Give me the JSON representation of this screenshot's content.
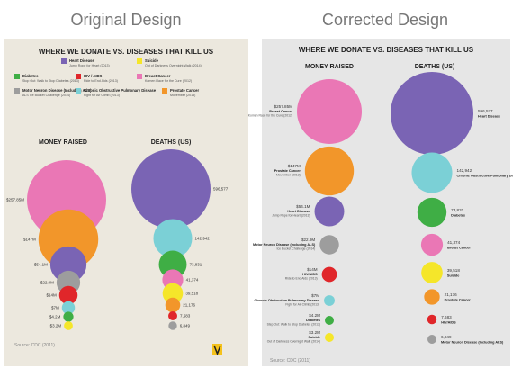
{
  "headers": {
    "left": "Original Design",
    "right": "Corrected Design"
  },
  "colors": {
    "purple": "#7a64b4",
    "yellow": "#f5e62a",
    "green": "#3fae45",
    "red": "#e0262a",
    "pink": "#ea77b5",
    "gray": "#9d9d9d",
    "teal": "#7bd0d6",
    "orange": "#f2962a",
    "panel_left": "#ece8de",
    "panel_right": "#e6e6e6"
  },
  "chart_data": [
    {
      "type": "bubble",
      "panel": "original",
      "title": "WHERE WE DONATE VS. DISEASES THAT KILL US",
      "legend": [
        {
          "name": "Heart Disease",
          "sub": "Jump Rope for Heart (2013)",
          "color": "purple"
        },
        {
          "name": "Suicide",
          "sub": "Out of Darkness Overnight Walk (2014)",
          "color": "yellow"
        },
        {
          "name": "Diabetes",
          "sub": "Stop Out: Walk to Stop Diabetes (2013)",
          "color": "green"
        },
        {
          "name": "HIV / AIDS",
          "sub": "Ride to End Aids (2013)",
          "color": "red"
        },
        {
          "name": "Breast Cancer",
          "sub": "Komen Race for the Cure (2012)",
          "color": "pink"
        },
        {
          "name": "Motor Neuron Disease (Including ALS)",
          "sub": "ALS Ice Bucket Challenge (2014)",
          "color": "gray"
        },
        {
          "name": "Chronic Obstructive Pulmonary Disease",
          "sub": "Fight for Air Climb (2013)",
          "color": "teal"
        },
        {
          "name": "Prostate Cancer",
          "sub": "Movember (2013)",
          "color": "orange"
        }
      ],
      "money_header": "MONEY RAISED",
      "deaths_header": "DEATHS (US)",
      "money": [
        {
          "label": "$257.85M",
          "value": 257.85,
          "color": "pink"
        },
        {
          "label": "$147M",
          "value": 147,
          "color": "orange"
        },
        {
          "label": "$54.1M",
          "value": 54.1,
          "color": "purple"
        },
        {
          "label": "$22.9M",
          "value": 22.9,
          "color": "gray"
        },
        {
          "label": "$14M",
          "value": 14,
          "color": "red"
        },
        {
          "label": "$7M",
          "value": 7,
          "color": "teal"
        },
        {
          "label": "$4.2M",
          "value": 4.2,
          "color": "green"
        },
        {
          "label": "$3.2M",
          "value": 3.2,
          "color": "yellow"
        }
      ],
      "deaths": [
        {
          "label": "596,577",
          "value": 596577,
          "color": "purple"
        },
        {
          "label": "142,942",
          "value": 142942,
          "color": "teal"
        },
        {
          "label": "73,831",
          "value": 73831,
          "color": "green"
        },
        {
          "label": "41,374",
          "value": 41374,
          "color": "pink"
        },
        {
          "label": "39,518",
          "value": 39518,
          "color": "yellow"
        },
        {
          "label": "21,176",
          "value": 21176,
          "color": "orange"
        },
        {
          "label": "7,683",
          "value": 7683,
          "color": "red"
        },
        {
          "label": "6,849",
          "value": 6849,
          "color": "gray"
        }
      ],
      "source": "Source: CDC (2011)"
    },
    {
      "type": "bubble",
      "panel": "corrected",
      "title": "WHERE WE DONATE VS. DISEASES THAT KILL US",
      "money_header": "MONEY RAISED",
      "deaths_header": "DEATHS (US)",
      "money": [
        {
          "label": "$257.85M",
          "name": "Breast Cancer",
          "sub": "Komen Race for the Cure (2012)",
          "value": 257.85,
          "color": "pink"
        },
        {
          "label": "$147M",
          "name": "Prostate Cancer",
          "sub": "Movember (2013)",
          "value": 147,
          "color": "orange"
        },
        {
          "label": "$54.1M",
          "name": "Heart Disease",
          "sub": "Jump Rope for Heart (2013)",
          "value": 54.1,
          "color": "purple"
        },
        {
          "label": "$22.9M",
          "name": "Motor Neuron Disease (Including ALS)",
          "sub": "Ice Bucket Challenge (2014)",
          "value": 22.9,
          "color": "gray"
        },
        {
          "label": "$14M",
          "name": "HIV/AIDS",
          "sub": "Ride to End Aids (2013)",
          "value": 14,
          "color": "red"
        },
        {
          "label": "$7M",
          "name": "Chronic Obstructive Pulmonary Disease",
          "sub": "Fight for Air Climb (2013)",
          "value": 7,
          "color": "teal"
        },
        {
          "label": "$4.2M",
          "name": "Diabetes",
          "sub": "Step Out: Walk to Stop Diabetes (2013)",
          "value": 4.2,
          "color": "green"
        },
        {
          "label": "$3.2M",
          "name": "Suicide",
          "sub": "Out of Darkness Overnight Walk (2014)",
          "value": 3.2,
          "color": "yellow"
        }
      ],
      "deaths": [
        {
          "label": "596,577",
          "name": "Heart Disease",
          "value": 596577,
          "color": "purple"
        },
        {
          "label": "142,942",
          "name": "Chronic Obstructive Pulmonary Disease",
          "value": 142942,
          "color": "teal"
        },
        {
          "label": "73,831",
          "name": "Diabetes",
          "value": 73831,
          "color": "green"
        },
        {
          "label": "41,374",
          "name": "Breast Cancer",
          "value": 41374,
          "color": "pink"
        },
        {
          "label": "39,518",
          "name": "Suicide",
          "value": 39518,
          "color": "yellow"
        },
        {
          "label": "21,176",
          "name": "Prostate Cancer",
          "value": 21176,
          "color": "orange"
        },
        {
          "label": "7,683",
          "name": "HIV/AIDS",
          "value": 7683,
          "color": "red"
        },
        {
          "label": "6,849",
          "name": "Motor Neuron Disease (Including ALS)",
          "value": 6849,
          "color": "gray"
        }
      ],
      "source": "Source: CDC (2011)"
    }
  ]
}
